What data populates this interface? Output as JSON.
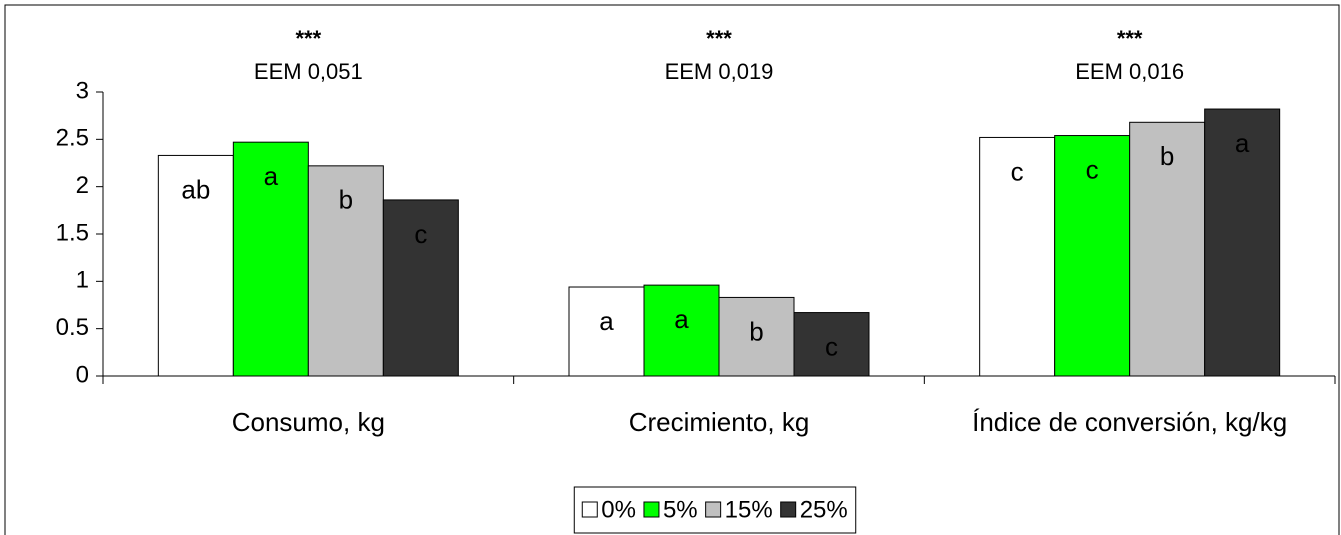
{
  "chart_data": {
    "type": "bar",
    "categories": [
      "Consumo, kg",
      "Crecimiento, kg",
      "Índice de conversión, kg/kg"
    ],
    "annotations": [
      {
        "stars": "***",
        "text": "EEM 0,051"
      },
      {
        "stars": "***",
        "text": "EEM 0,019"
      },
      {
        "stars": "***",
        "text": "EEM 0,016"
      }
    ],
    "series": [
      {
        "name": "0%",
        "color": "#ffffff",
        "values": [
          2.33,
          0.94,
          2.52
        ],
        "significance": [
          "ab",
          "a",
          "c"
        ]
      },
      {
        "name": "5%",
        "color": "#00ff00",
        "values": [
          2.47,
          0.96,
          2.54
        ],
        "significance": [
          "a",
          "a",
          "c"
        ]
      },
      {
        "name": "15%",
        "color": "#c0c0c0",
        "values": [
          2.22,
          0.83,
          2.68
        ],
        "significance": [
          "b",
          "b",
          "b"
        ]
      },
      {
        "name": "25%",
        "color": "#333333",
        "values": [
          1.86,
          0.67,
          2.82
        ],
        "significance": [
          "c",
          "c",
          "a"
        ]
      }
    ],
    "ylim": [
      0,
      3
    ],
    "yticks": [
      0,
      0.5,
      1,
      1.5,
      2,
      2.5,
      3
    ],
    "grid": false,
    "legend": "bottom"
  }
}
